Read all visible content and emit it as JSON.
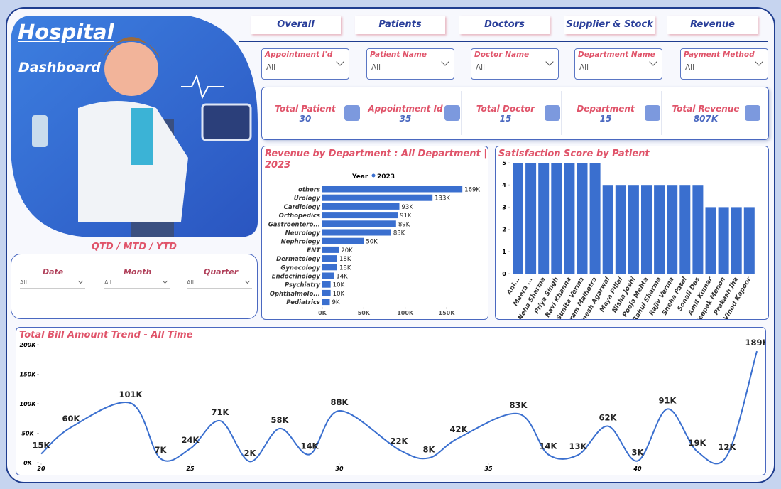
{
  "header": {
    "title": "Hospital",
    "subtitle": "Dashboard"
  },
  "nav": [
    "Overall",
    "Patients",
    "Doctors",
    "Supplier & Stock",
    "Revenue"
  ],
  "filters": [
    {
      "label": "Appointment I'd",
      "value": "All"
    },
    {
      "label": "Patient Name",
      "value": "All"
    },
    {
      "label": "Doctor Name",
      "value": "All"
    },
    {
      "label": "Department Name",
      "value": "All"
    },
    {
      "label": "Payment Method",
      "value": "All"
    }
  ],
  "kpis": [
    {
      "label": "Total Patient",
      "value": 30
    },
    {
      "label": "Appointment Id",
      "value": 35
    },
    {
      "label": "Total Doctor",
      "value": 15
    },
    {
      "label": "Department",
      "value": 15
    },
    {
      "label": "Total Revenue",
      "value": "807K"
    }
  ],
  "period": {
    "title": "QTD / MTD / YTD",
    "slicers": [
      {
        "label": "Date",
        "value": "All"
      },
      {
        "label": "Month",
        "value": "All"
      },
      {
        "label": "Quarter",
        "value": "All"
      }
    ]
  },
  "chart_data": [
    {
      "type": "bar",
      "orientation": "horizontal",
      "title": "Revenue by Department : All Department | 2023",
      "legend_title": "Year",
      "categories": [
        "others",
        "Urology",
        "Cardiology",
        "Orthopedics",
        "Gastroentero...",
        "Neurology",
        "Nephrology",
        "ENT",
        "Dermatology",
        "Gynecology",
        "Endocrinology",
        "Psychiatry",
        "Ophthalmolo...",
        "Pediatrics"
      ],
      "series": [
        {
          "name": "2023",
          "color": "#3a6fcf",
          "values": [
            169000,
            133000,
            93000,
            91000,
            89000,
            83000,
            50000,
            20000,
            18000,
            18000,
            14000,
            10000,
            10000,
            9000
          ],
          "value_labels": [
            "169K",
            "133K",
            "93K",
            "91K",
            "89K",
            "83K",
            "50K",
            "20K",
            "18K",
            "18K",
            "14K",
            "10K",
            "10K",
            "9K"
          ]
        }
      ],
      "xlim": [
        0,
        180000
      ],
      "xticks": [
        {
          "value": 0,
          "label": "0K"
        },
        {
          "value": 50000,
          "label": "50K"
        },
        {
          "value": 100000,
          "label": "100K"
        },
        {
          "value": 150000,
          "label": "150K"
        }
      ]
    },
    {
      "type": "bar",
      "orientation": "vertical",
      "title": "Satisfaction Score by Patient",
      "categories": [
        "Ani...",
        "Meera ...",
        "Neha Sharma",
        "Priya Singh",
        "Ravi Khanna",
        "Sunita Verma",
        "Vikram Malhotra",
        "Dinesh Agarwal",
        "Maya Pillai",
        "Nisha Joshi",
        "Pooja Mehta",
        "Rahul Sharma",
        "Rajiv Verma",
        "Sneha Patel",
        "Sonali Das",
        "Amit Kumar",
        "Deepak Menon",
        "Prakash Jha",
        "Vinod Kapoor"
      ],
      "values": [
        5,
        5,
        5,
        5,
        5,
        5,
        5,
        4,
        4,
        4,
        4,
        4,
        4,
        4,
        4,
        3,
        3,
        3,
        3
      ],
      "color": "#3a6fcf",
      "ylim": [
        0,
        5
      ],
      "yticks": [
        0,
        1,
        2,
        3,
        4,
        5
      ]
    },
    {
      "type": "line",
      "title": "Total Bill Amount Trend - All Time",
      "x": [
        20,
        21,
        23,
        24,
        25,
        26,
        27,
        28,
        29,
        30,
        32,
        33,
        34,
        36,
        37,
        38,
        39,
        40,
        41,
        42,
        43,
        44
      ],
      "values": [
        15000,
        60000,
        101000,
        7000,
        24000,
        71000,
        2000,
        58000,
        14000,
        88000,
        22000,
        8000,
        42000,
        83000,
        14000,
        13000,
        62000,
        3000,
        91000,
        19000,
        12000,
        189000
      ],
      "value_labels": [
        "15K",
        "60K",
        "101K",
        "7K",
        "24K",
        "71K",
        "2K",
        "58K",
        "14K",
        "88K",
        "22K",
        "8K",
        "42K",
        "83K",
        "14K",
        "13K",
        "62K",
        "3K",
        "91K",
        "19K",
        "12K",
        "189K"
      ],
      "color": "#3a6fcf",
      "xlim": [
        20,
        44
      ],
      "xticks": [
        20,
        25,
        30,
        35,
        40
      ],
      "ylim": [
        0,
        200000
      ],
      "yticks": [
        {
          "value": 0,
          "label": "0K"
        },
        {
          "value": 50000,
          "label": "50K"
        },
        {
          "value": 100000,
          "label": "100K"
        },
        {
          "value": 150000,
          "label": "150K"
        },
        {
          "value": 200000,
          "label": "200K"
        }
      ]
    }
  ]
}
